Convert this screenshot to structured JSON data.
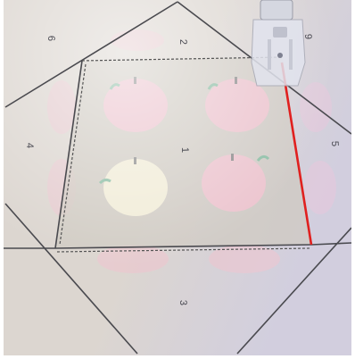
{
  "section_numbers": {
    "center": "1",
    "top": "2",
    "bottom": "3",
    "left": "4",
    "right": "5",
    "top_left": "6",
    "top_right": "9"
  },
  "colors": {
    "fabric": "#d9d2cb",
    "apple_pink": "#eec6d0",
    "apple_green": "#8fbfa7",
    "print_line": "#4a4a4f",
    "stitch_line": "#e0201f",
    "presser_foot": "#c9ccd6"
  },
  "objects": [
    "sewing-machine-presser-foot",
    "apple-print-fabric",
    "paper-piecing-pattern"
  ]
}
